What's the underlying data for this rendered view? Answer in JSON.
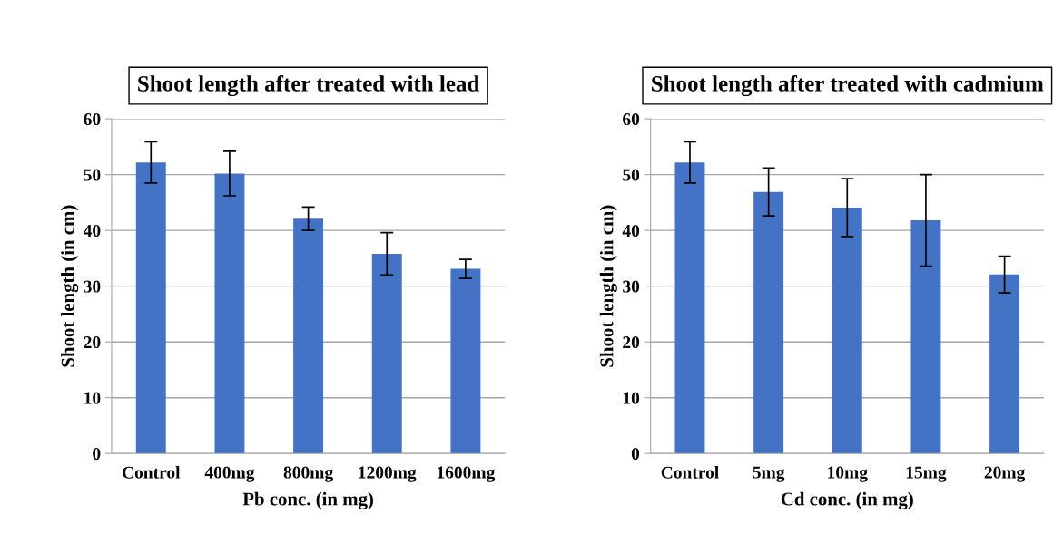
{
  "chart_data": [
    {
      "type": "bar",
      "title": "Shoot length after treated with lead",
      "xlabel": "Pb conc. (in mg)",
      "ylabel": "Shoot length (in cm)",
      "categories": [
        "Control",
        "400mg",
        "800mg",
        "1200mg",
        "1600mg"
      ],
      "values": [
        52.2,
        50.2,
        42.1,
        35.8,
        33.1
      ],
      "errors": [
        3.7,
        4.0,
        2.1,
        3.8,
        1.7
      ],
      "color": "#4472c4",
      "ylim": [
        0,
        60
      ],
      "yticks": [
        0,
        10,
        20,
        30,
        40,
        50,
        60
      ],
      "grid": "y"
    },
    {
      "type": "bar",
      "title": "Shoot length after treated with cadmium",
      "xlabel": "Cd conc. (in mg)",
      "ylabel": "Shoot length (in cm)",
      "categories": [
        "Control",
        "5mg",
        "10mg",
        "15mg",
        "20mg"
      ],
      "values": [
        52.2,
        46.9,
        44.1,
        41.8,
        32.1
      ],
      "errors": [
        3.7,
        4.3,
        5.2,
        8.2,
        3.3
      ],
      "color": "#4472c4",
      "ylim": [
        0,
        60
      ],
      "yticks": [
        0,
        10,
        20,
        30,
        40,
        50,
        60
      ],
      "grid": "y"
    }
  ]
}
